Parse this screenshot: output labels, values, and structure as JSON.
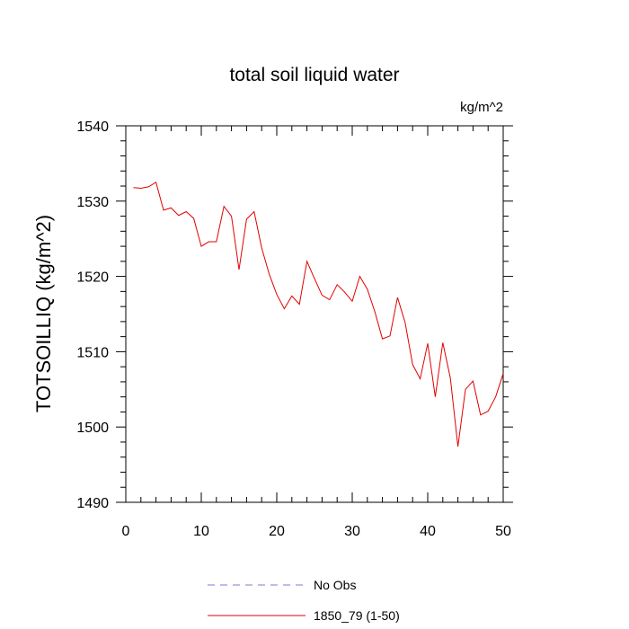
{
  "chart_data": {
    "type": "line",
    "title": "total soil liquid water",
    "units_label": "kg/m^2",
    "xlabel": "",
    "ylabel": "TOTSOILLIQ  (kg/m^2)",
    "xlim": [
      0,
      50
    ],
    "ylim": [
      1490,
      1540
    ],
    "x_ticks": [
      0,
      10,
      20,
      30,
      40,
      50
    ],
    "y_ticks": [
      1490,
      1500,
      1510,
      1520,
      1530,
      1540
    ],
    "x_tick_labels": [
      "0",
      "10",
      "20",
      "30",
      "40",
      "50"
    ],
    "y_tick_labels": [
      "1490",
      "1500",
      "1510",
      "1520",
      "1530",
      "1540"
    ],
    "grid": false,
    "legend_position": "bottom",
    "series": [
      {
        "name": "No Obs",
        "color": "#7b7bd8",
        "style": "dashed",
        "x": [],
        "values": []
      },
      {
        "name": "1850_79 (1-50)",
        "color": "#e00000",
        "style": "solid",
        "x": [
          1,
          2,
          3,
          4,
          5,
          6,
          7,
          8,
          9,
          10,
          11,
          12,
          13,
          14,
          15,
          16,
          17,
          18,
          19,
          20,
          21,
          22,
          23,
          24,
          25,
          26,
          27,
          28,
          29,
          30,
          31,
          32,
          33,
          34,
          35,
          36,
          37,
          38,
          39,
          40,
          41,
          42,
          43,
          44,
          45,
          46,
          47,
          48,
          49,
          50
        ],
        "values": [
          1531.8,
          1531.7,
          1531.9,
          1532.5,
          1528.8,
          1529.1,
          1528.1,
          1528.6,
          1527.7,
          1524.0,
          1524.6,
          1524.6,
          1529.3,
          1528.0,
          1520.9,
          1527.6,
          1528.6,
          1523.8,
          1520.3,
          1517.6,
          1515.7,
          1517.4,
          1516.3,
          1522.0,
          1519.7,
          1517.5,
          1516.9,
          1518.9,
          1517.9,
          1516.7,
          1520.0,
          1518.3,
          1515.3,
          1511.7,
          1512.1,
          1517.2,
          1513.9,
          1508.3,
          1506.4,
          1511.1,
          1504.0,
          1511.2,
          1506.5,
          1497.4,
          1505.0,
          1506.1,
          1501.6,
          1502.1,
          1504.0,
          1507.1
        ]
      }
    ]
  }
}
